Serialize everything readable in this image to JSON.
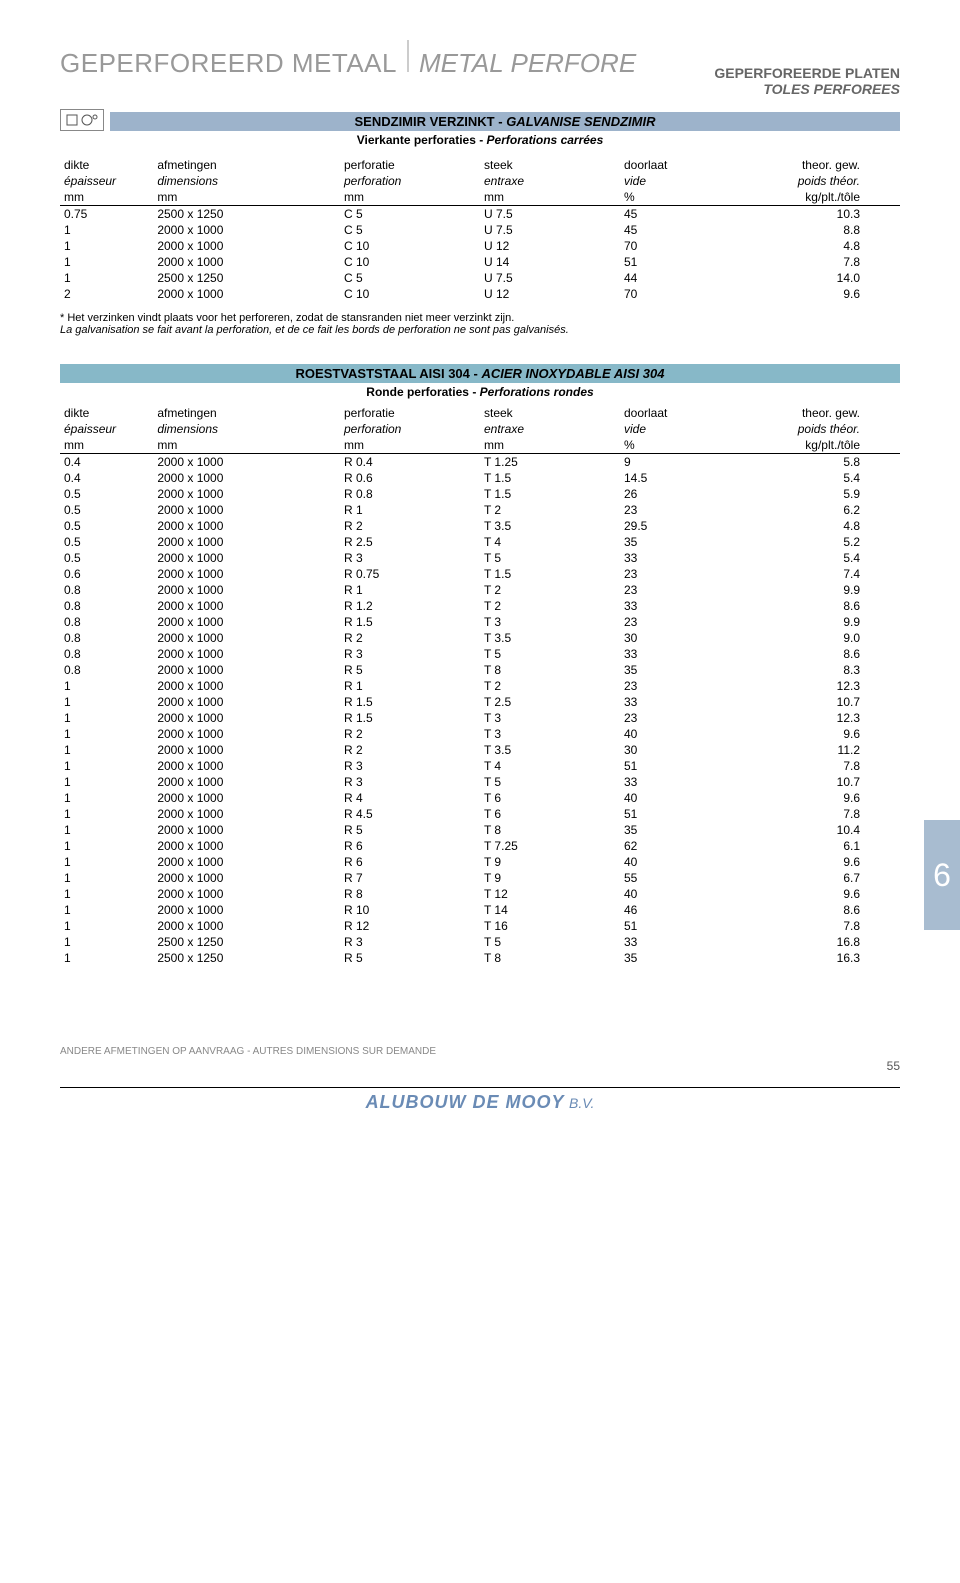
{
  "mainTitle": "GEPERFOREERD METAAL",
  "mainTitleEm": "METAL PERFORE",
  "topRight": {
    "line1": "GEPERFOREERDE PLATEN",
    "line2": "TOLES PERFOREES"
  },
  "section1": {
    "bar": "SENDZIMIR VERZINKT - ",
    "barEm": "GALVANISE SENDZIMIR",
    "sub": "Vierkante perforaties - ",
    "subEm": "Perforations carrées"
  },
  "headers": {
    "row1": [
      "dikte",
      "afmetingen",
      "perforatie",
      "steek",
      "doorlaat",
      "theor. gew."
    ],
    "row2": [
      "épaisseur",
      "dimensions",
      "perforation",
      "entraxe",
      "vide",
      "poids théor."
    ],
    "row3": [
      "mm",
      "mm",
      "mm",
      "mm",
      "%",
      "kg/plt./tôle"
    ]
  },
  "table1": [
    [
      "0.75",
      "2500 x 1250",
      "C  5",
      "U  7.5",
      "45",
      "10.3"
    ],
    [
      "1",
      "2000 x 1000",
      "C  5",
      "U  7.5",
      "45",
      "8.8"
    ],
    [
      "1",
      "2000 x 1000",
      "C  10",
      "U  12",
      "70",
      "4.8"
    ],
    [
      "1",
      "2000 x 1000",
      "C  10",
      "U  14",
      "51",
      "7.8"
    ],
    [
      "1",
      "2500 x 1250",
      "C  5",
      "U  7.5",
      "44",
      "14.0"
    ],
    [
      "2",
      "2000 x 1000",
      "C  10",
      "U  12",
      "70",
      "9.6"
    ]
  ],
  "note1": "* Het verzinken vindt plaats voor het perforeren, zodat de stansranden niet meer verzinkt zijn.",
  "note2": "La galvanisation se fait avant la perforation, et de ce fait les bords de perforation ne sont pas galvanisés.",
  "section2": {
    "bar": "ROESTVASTSTAAL AISI 304 - ",
    "barEm": "ACIER INOXYDABLE AISI 304",
    "sub": "Ronde perforaties - ",
    "subEm": "Perforations rondes"
  },
  "table2": [
    [
      "0.4",
      "2000 x 1000",
      "R  0.4",
      "T  1.25",
      "9",
      "5.8"
    ],
    [
      "0.4",
      "2000 x 1000",
      "R  0.6",
      "T  1.5",
      "14.5",
      "5.4"
    ],
    [
      "0.5",
      "2000 x 1000",
      "R  0.8",
      "T  1.5",
      "26",
      "5.9"
    ],
    [
      "0.5",
      "2000 x 1000",
      "R  1",
      "T  2",
      "23",
      "6.2"
    ],
    [
      "0.5",
      "2000 x 1000",
      "R  2",
      "T  3.5",
      "29.5",
      "4.8"
    ],
    [
      "0.5",
      "2000 x 1000",
      "R  2.5",
      "T  4",
      "35",
      "5.2"
    ],
    [
      "0.5",
      "2000 x 1000",
      "R  3",
      "T  5",
      "33",
      "5.4"
    ],
    [
      "0.6",
      "2000 x 1000",
      "R  0.75",
      "T  1.5",
      "23",
      "7.4"
    ],
    [
      "0.8",
      "2000 x 1000",
      "R  1",
      "T  2",
      "23",
      "9.9"
    ],
    [
      "0.8",
      "2000 x 1000",
      "R  1.2",
      "T  2",
      "33",
      "8.6"
    ],
    [
      "0.8",
      "2000 x 1000",
      "R  1.5",
      "T  3",
      "23",
      "9.9"
    ],
    [
      "0.8",
      "2000 x 1000",
      "R  2",
      "T  3.5",
      "30",
      "9.0"
    ],
    [
      "0.8",
      "2000 x 1000",
      "R  3",
      "T  5",
      "33",
      "8.6"
    ],
    [
      "0.8",
      "2000 x 1000",
      "R  5",
      "T  8",
      "35",
      "8.3"
    ],
    [
      "1",
      "2000 x 1000",
      "R  1",
      "T  2",
      "23",
      "12.3"
    ],
    [
      "1",
      "2000 x 1000",
      "R  1.5",
      "T  2.5",
      "33",
      "10.7"
    ],
    [
      "1",
      "2000 x 1000",
      "R  1.5",
      "T  3",
      "23",
      "12.3"
    ],
    [
      "1",
      "2000 x 1000",
      "R  2",
      "T  3",
      "40",
      "9.6"
    ],
    [
      "1",
      "2000 x 1000",
      "R  2",
      "T  3.5",
      "30",
      "11.2"
    ],
    [
      "1",
      "2000 x 1000",
      "R  3",
      "T  4",
      "51",
      "7.8"
    ],
    [
      "1",
      "2000 x 1000",
      "R  3",
      "T  5",
      "33",
      "10.7"
    ],
    [
      "1",
      "2000 x 1000",
      "R  4",
      "T  6",
      "40",
      "9.6"
    ],
    [
      "1",
      "2000 x 1000",
      "R  4.5",
      "T  6",
      "51",
      "7.8"
    ],
    [
      "1",
      "2000 x 1000",
      "R  5",
      "T  8",
      "35",
      "10.4"
    ],
    [
      "1",
      "2000 x 1000",
      "R  6",
      "T  7.25",
      "62",
      "6.1"
    ],
    [
      "1",
      "2000 x 1000",
      "R  6",
      "T  9",
      "40",
      "9.6"
    ],
    [
      "1",
      "2000 x 1000",
      "R  7",
      "T  9",
      "55",
      "6.7"
    ],
    [
      "1",
      "2000 x 1000",
      "R  8",
      "T  12",
      "40",
      "9.6"
    ],
    [
      "1",
      "2000 x 1000",
      "R  10",
      "T  14",
      "46",
      "8.6"
    ],
    [
      "1",
      "2000 x 1000",
      "R  12",
      "T  16",
      "51",
      "7.8"
    ],
    [
      "1",
      "2500 x 1250",
      "R  3",
      "T  5",
      "33",
      "16.8"
    ],
    [
      "1",
      "2500 x 1250",
      "R  5",
      "T  8",
      "35",
      "16.3"
    ]
  ],
  "sideTab": "6",
  "pageNum": "55",
  "footerNote": "ANDERE AFMETINGEN OP AANVRAAG - AUTRES DIMENSIONS SUR DEMANDE",
  "logo": "ALUBOUW DE MOOY",
  "logoSuffix": "B.V.",
  "colors": {
    "bar1": "#9db3cb",
    "bar2": "#87b8c8",
    "sideTab": "#a8bcd0",
    "titleGrey": "#999999",
    "logoBlue": "#6a8bb5"
  }
}
